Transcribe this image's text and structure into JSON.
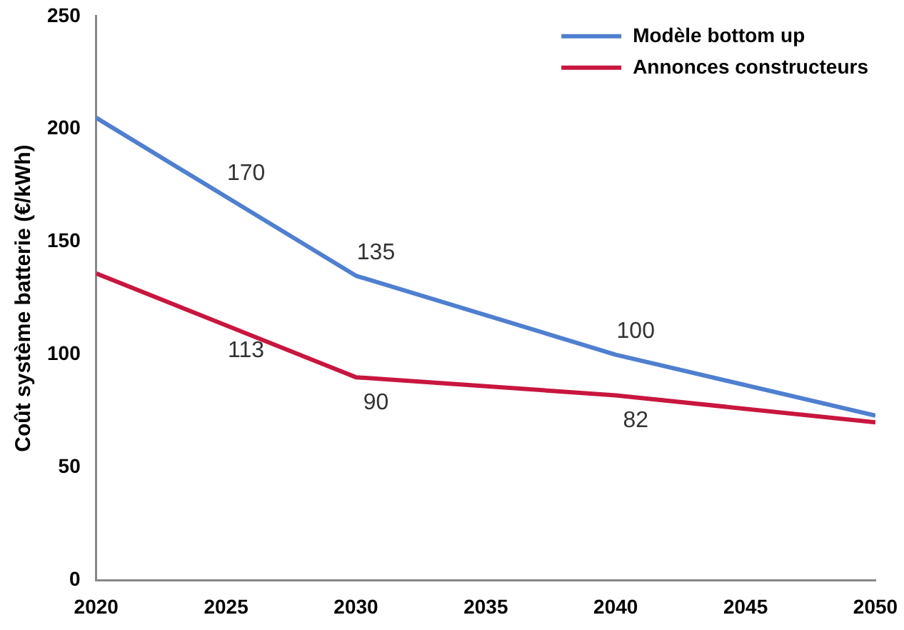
{
  "chart_data": {
    "type": "line",
    "ylabel": "Coût système batterie (€/kWh)",
    "x": [
      2020,
      2025,
      2030,
      2040,
      2050
    ],
    "xlim": [
      2020,
      2050
    ],
    "xticks": [
      2020,
      2025,
      2030,
      2035,
      2040,
      2045,
      2050
    ],
    "ylim": [
      0,
      250
    ],
    "yticks": [
      0,
      50,
      100,
      150,
      200,
      250
    ],
    "grid": false,
    "legend": "top right",
    "marker": "none",
    "series": [
      {
        "name": "Modèle bottom up",
        "color": "#4f7fd0",
        "values": [
          205,
          170,
          135,
          100,
          73
        ],
        "value_labels": [
          null,
          "170",
          "135",
          "100",
          null
        ]
      },
      {
        "name": "Annonces constructeurs",
        "color": "#c8163f",
        "values": [
          136,
          113,
          90,
          82,
          70
        ],
        "value_labels": [
          null,
          "113",
          "90",
          "82",
          null
        ]
      }
    ]
  }
}
